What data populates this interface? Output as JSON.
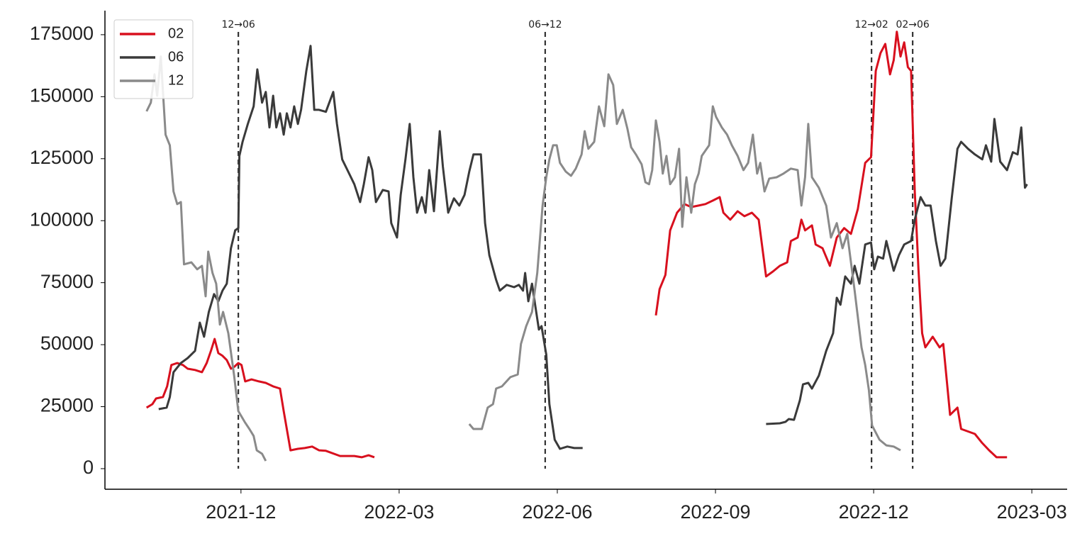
{
  "chart_data": {
    "type": "line",
    "xlim": [
      -2.58,
      15.67
    ],
    "xticks": [
      {
        "value": 0,
        "label": "2021-12"
      },
      {
        "value": 3,
        "label": "2022-03"
      },
      {
        "value": 6,
        "label": "2022-06"
      },
      {
        "value": 9,
        "label": "2022-09"
      },
      {
        "value": 12,
        "label": "2022-12"
      },
      {
        "value": 15,
        "label": "2023-03"
      }
    ],
    "ylim": [
      -8300,
      184700
    ],
    "yticks": [
      0,
      25000,
      50000,
      75000,
      100000,
      125000,
      150000,
      175000
    ],
    "legend": "upper left",
    "vlines": [
      {
        "x": -0.05,
        "label": "12→06"
      },
      {
        "x": 5.77,
        "label": "06→12"
      },
      {
        "x": 11.96,
        "label": "12→02"
      },
      {
        "x": 12.74,
        "label": "02→06"
      }
    ],
    "series": [
      {
        "name": "02",
        "color": "#d8101e",
        "x": [
          -1.79,
          -1.68,
          -1.61,
          -1.48,
          -1.4,
          -1.32,
          -1.21,
          -1.1,
          -1.01,
          -0.87,
          -0.74,
          -0.65,
          -0.57,
          -0.5,
          -0.43,
          -0.35,
          -0.27,
          -0.19,
          -0.12,
          -0.05,
          0.01,
          0.08,
          0.2,
          0.34,
          0.47,
          0.61,
          0.74,
          0.81,
          0.94,
          1.08,
          1.21,
          1.35,
          1.48,
          1.61,
          1.88,
          2.15,
          2.29,
          2.42,
          2.53,
          null,
          7.87,
          7.94,
          8.05,
          8.14,
          8.27,
          8.41,
          8.54,
          8.68,
          8.81,
          8.95,
          9.08,
          9.15,
          9.28,
          9.42,
          9.55,
          9.69,
          9.82,
          9.96,
          10.09,
          10.22,
          10.36,
          10.43,
          10.56,
          10.63,
          10.7,
          10.83,
          10.9,
          11.03,
          11.17,
          11.3,
          11.44,
          11.57,
          11.7,
          11.84,
          11.95,
          12.04,
          12.13,
          12.22,
          12.31,
          12.38,
          12.44,
          12.51,
          12.58,
          12.65,
          12.71,
          12.78,
          12.85,
          12.92,
          12.98,
          13.12,
          13.25,
          13.32,
          13.45,
          13.59,
          13.66,
          13.92,
          14.06,
          14.19,
          14.33,
          14.53
        ],
        "values": [
          24600,
          26000,
          28300,
          28900,
          33200,
          41800,
          42600,
          41800,
          40300,
          39800,
          38900,
          42600,
          47500,
          52300,
          46600,
          45500,
          43800,
          40300,
          41200,
          42600,
          41800,
          35200,
          36000,
          35200,
          34600,
          33200,
          32300,
          23200,
          7400,
          8000,
          8300,
          8900,
          7400,
          7200,
          5100,
          5100,
          4600,
          5400,
          4600,
          null,
          61800,
          72400,
          78100,
          96100,
          103200,
          106700,
          105500,
          106100,
          106700,
          108100,
          109500,
          103200,
          100400,
          103800,
          101800,
          103200,
          100400,
          77500,
          79500,
          81800,
          83200,
          91800,
          93200,
          100400,
          96100,
          98100,
          90400,
          88900,
          81800,
          93200,
          97000,
          94700,
          104700,
          123300,
          125600,
          160400,
          167600,
          171300,
          159000,
          164700,
          176200,
          166200,
          171900,
          161900,
          160400,
          111800,
          80400,
          54600,
          48900,
          53200,
          48900,
          50300,
          21700,
          24600,
          16000,
          14000,
          10300,
          7400,
          4600,
          4600
        ]
      },
      {
        "name": "06",
        "color": "#3a3a3a",
        "x": [
          -1.56,
          -1.41,
          -1.35,
          -1.28,
          -1.14,
          -1.01,
          -0.87,
          -0.78,
          -0.7,
          -0.61,
          -0.51,
          -0.43,
          -0.35,
          -0.27,
          -0.19,
          -0.11,
          -0.05,
          -0.03,
          0.03,
          0.13,
          0.24,
          0.31,
          0.4,
          0.47,
          0.54,
          0.61,
          0.67,
          0.74,
          0.81,
          0.87,
          0.94,
          1.01,
          1.08,
          1.14,
          1.24,
          1.32,
          1.39,
          1.48,
          1.61,
          1.75,
          1.82,
          1.92,
          2.02,
          2.15,
          2.26,
          2.33,
          2.42,
          2.49,
          2.56,
          2.69,
          2.8,
          2.85,
          2.96,
          3.03,
          3.12,
          3.2,
          3.27,
          3.34,
          3.43,
          3.5,
          3.57,
          3.66,
          3.77,
          3.83,
          3.93,
          4.04,
          4.14,
          4.24,
          4.33,
          4.41,
          4.55,
          4.63,
          4.71,
          4.84,
          4.91,
          5.04,
          5.18,
          5.27,
          5.35,
          5.39,
          5.45,
          5.52,
          5.58,
          5.65,
          5.7,
          5.79,
          5.85,
          5.95,
          6.05,
          6.19,
          6.32,
          6.48,
          null,
          9.96,
          10.22,
          10.33,
          10.39,
          10.49,
          10.6,
          10.66,
          10.76,
          10.83,
          10.96,
          11.1,
          11.23,
          11.3,
          11.37,
          11.46,
          11.57,
          11.64,
          11.73,
          11.84,
          11.95,
          12.01,
          12.08,
          12.18,
          12.24,
          12.38,
          12.48,
          12.58,
          12.71,
          12.78,
          12.89,
          12.98,
          13.08,
          13.18,
          13.27,
          13.36,
          13.48,
          13.59,
          13.66,
          13.79,
          13.92,
          14.06,
          14.13,
          14.23,
          14.29,
          14.4,
          14.53,
          14.64,
          14.73,
          14.8,
          14.87,
          14.91
        ],
        "values": [
          24000,
          24600,
          28900,
          38900,
          42600,
          44600,
          47500,
          58900,
          53200,
          63200,
          70400,
          67500,
          71800,
          74600,
          88900,
          96100,
          97000,
          126100,
          131800,
          139000,
          146100,
          161000,
          147600,
          151900,
          137600,
          150400,
          137600,
          143300,
          134700,
          143300,
          137600,
          146100,
          139000,
          144700,
          160400,
          170500,
          144700,
          144700,
          143900,
          151900,
          139000,
          124700,
          120400,
          114700,
          107500,
          114700,
          125600,
          120400,
          107500,
          112400,
          111800,
          99000,
          93200,
          110400,
          124700,
          139000,
          117500,
          103200,
          109500,
          103200,
          120400,
          103800,
          136100,
          121800,
          103200,
          109000,
          106100,
          110400,
          119800,
          126700,
          126700,
          99000,
          86100,
          76100,
          71800,
          74100,
          73200,
          74100,
          71800,
          78900,
          67500,
          74600,
          66100,
          56100,
          57500,
          46000,
          26000,
          11700,
          8000,
          8900,
          8300,
          8300,
          null,
          18000,
          18300,
          18900,
          20000,
          19700,
          27500,
          34000,
          34600,
          32300,
          37500,
          47500,
          54600,
          68900,
          66100,
          77500,
          74600,
          81800,
          74600,
          90400,
          91200,
          80400,
          85500,
          84700,
          91800,
          79800,
          86100,
          90400,
          91800,
          100400,
          109500,
          106100,
          106100,
          91800,
          81800,
          84700,
          109000,
          129000,
          131800,
          129000,
          126700,
          124700,
          130400,
          123800,
          141000,
          123800,
          120400,
          127600,
          126700,
          137600,
          113300,
          114700
        ]
      },
      {
        "name": "12",
        "color": "#8a8a8a",
        "x": [
          -1.79,
          -1.71,
          -1.64,
          -1.59,
          -1.52,
          -1.43,
          -1.35,
          -1.28,
          -1.21,
          -1.14,
          -1.08,
          -0.94,
          -0.83,
          -0.74,
          -0.67,
          -0.62,
          -0.54,
          -0.47,
          -0.4,
          -0.34,
          -0.24,
          -0.13,
          -0.05,
          0.07,
          0.16,
          0.24,
          0.3,
          0.4,
          0.47,
          null,
          4.33,
          4.41,
          4.57,
          4.68,
          4.78,
          4.84,
          4.95,
          5.11,
          5.25,
          5.31,
          5.41,
          5.52,
          5.62,
          5.72,
          5.79,
          5.85,
          5.92,
          5.99,
          6.05,
          6.16,
          6.26,
          6.35,
          6.46,
          6.52,
          6.59,
          6.7,
          6.79,
          6.89,
          6.97,
          7.06,
          7.13,
          7.24,
          7.33,
          7.4,
          7.49,
          7.6,
          7.67,
          7.74,
          7.8,
          7.87,
          7.94,
          8.0,
          8.07,
          8.14,
          8.23,
          8.31,
          8.37,
          8.45,
          8.54,
          8.61,
          8.68,
          8.74,
          8.88,
          8.95,
          9.01,
          9.12,
          9.22,
          9.31,
          9.42,
          9.53,
          9.62,
          9.71,
          9.79,
          9.85,
          9.93,
          10.02,
          10.16,
          10.29,
          10.43,
          10.56,
          10.63,
          10.7,
          10.76,
          10.83,
          10.96,
          11.1,
          11.19,
          11.3,
          11.41,
          11.5,
          11.64,
          11.77,
          11.84,
          11.91,
          11.97,
          12.11,
          12.24,
          12.38,
          12.51
        ],
        "values": [
          144100,
          147600,
          159000,
          150400,
          166200,
          134700,
          130400,
          111800,
          106700,
          107500,
          82400,
          83200,
          80400,
          81800,
          69500,
          87500,
          78900,
          74600,
          58100,
          63200,
          54600,
          37500,
          23200,
          18900,
          16000,
          13200,
          7400,
          6000,
          3100,
          null,
          18000,
          16000,
          16000,
          24600,
          26000,
          32300,
          33200,
          36900,
          38000,
          50300,
          57500,
          63200,
          78900,
          106100,
          117500,
          124700,
          130400,
          130400,
          123300,
          119800,
          118100,
          121000,
          126700,
          136100,
          129000,
          131800,
          146100,
          138100,
          159000,
          154700,
          139000,
          144700,
          137000,
          129600,
          126700,
          122700,
          115500,
          114700,
          120400,
          140400,
          131800,
          119000,
          126100,
          114700,
          117500,
          129000,
          97500,
          117500,
          103200,
          114700,
          119000,
          126100,
          130400,
          146100,
          141900,
          137600,
          134700,
          130400,
          126100,
          120400,
          123300,
          134700,
          119000,
          123300,
          111800,
          117000,
          117500,
          119000,
          121000,
          120400,
          106100,
          117500,
          139000,
          117500,
          113300,
          106100,
          93200,
          99000,
          88900,
          94700,
          71800,
          48900,
          41800,
          31700,
          17400,
          11700,
          9400,
          8900,
          7400
        ]
      }
    ]
  }
}
